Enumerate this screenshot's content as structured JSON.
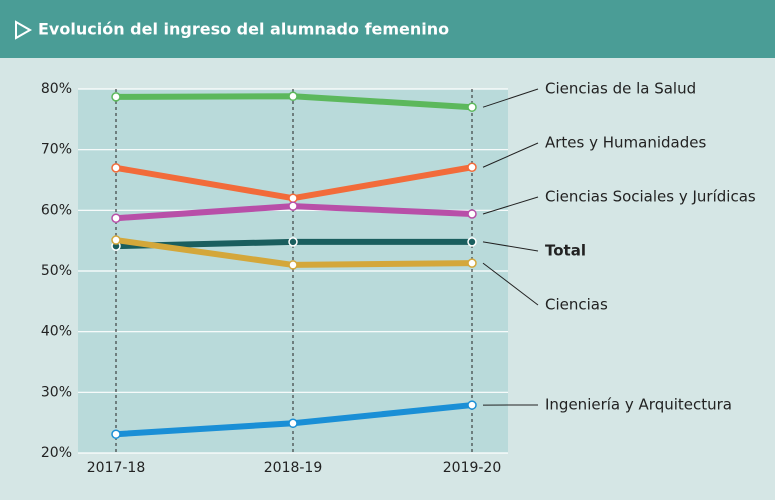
{
  "chart_data": {
    "type": "line",
    "title": "Evolución del ingreso del alumnado femenino",
    "categories": [
      "2017-18",
      "2018-19",
      "2019-20"
    ],
    "series": [
      {
        "name": "Ciencias de la Salud",
        "color": "#5cb85c",
        "values": [
          78.7,
          78.8,
          77.0
        ]
      },
      {
        "name": "Artes y Humanidades",
        "color": "#f26b3a",
        "values": [
          67.0,
          62.0,
          67.1
        ]
      },
      {
        "name": "Ciencias Sociales y Jurídicas",
        "color": "#b84fa8",
        "values": [
          58.7,
          60.7,
          59.4
        ]
      },
      {
        "name": "Total",
        "color": "#1a5e5e",
        "values": [
          54.1,
          54.8,
          54.8
        ]
      },
      {
        "name": "Ciencias",
        "color": "#d4a73a",
        "values": [
          55.1,
          51.0,
          51.3
        ]
      },
      {
        "name": "Ingeniería y Arquitectura",
        "color": "#1a8fd6",
        "values": [
          23.1,
          24.9,
          27.9
        ]
      }
    ],
    "ylim": [
      20,
      80
    ],
    "yticks": [
      {
        "value": 20,
        "label": "20%"
      },
      {
        "value": 30,
        "label": "30%"
      },
      {
        "value": 40,
        "label": "40%"
      },
      {
        "value": 50,
        "label": "50%"
      },
      {
        "value": 60,
        "label": "60%"
      },
      {
        "value": 70,
        "label": "70%"
      },
      {
        "value": 80,
        "label": "80%"
      }
    ],
    "grid": true
  }
}
